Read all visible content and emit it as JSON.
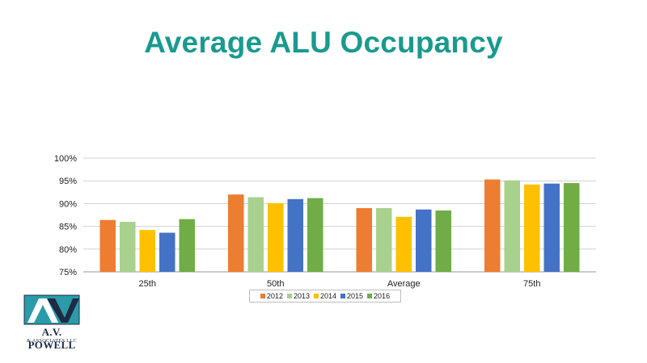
{
  "slide": {
    "title": "Average ALU Occupancy"
  },
  "logo": {
    "name": "A.V. POWELL",
    "sub": "& ASSOCIATES LLC",
    "icon": "avp-logo-icon"
  },
  "colors": {
    "title": "#1a9a8f",
    "2012": "#ed7d31",
    "2013": "#a9d18e",
    "2014": "#ffc000",
    "2015": "#4472c4",
    "2016": "#70ad47"
  },
  "chart_data": {
    "type": "bar",
    "title": "",
    "xlabel": "",
    "ylabel": "",
    "categories": [
      "25th",
      "50th",
      "Average",
      "75th"
    ],
    "ylim": [
      0.75,
      1.0
    ],
    "yticks": [
      "75%",
      "80%",
      "85%",
      "90%",
      "95%",
      "100%"
    ],
    "grid": true,
    "legend_position": "bottom",
    "series": [
      {
        "name": "2012",
        "color": "#ed7d31",
        "values": [
          0.864,
          0.92,
          0.89,
          0.953
        ]
      },
      {
        "name": "2013",
        "color": "#a9d18e",
        "values": [
          0.86,
          0.914,
          0.89,
          0.951
        ]
      },
      {
        "name": "2014",
        "color": "#ffc000",
        "values": [
          0.842,
          0.901,
          0.871,
          0.942
        ]
      },
      {
        "name": "2015",
        "color": "#4472c4",
        "values": [
          0.836,
          0.91,
          0.887,
          0.944
        ]
      },
      {
        "name": "2016",
        "color": "#70ad47",
        "values": [
          0.866,
          0.912,
          0.885,
          0.945
        ]
      }
    ]
  }
}
